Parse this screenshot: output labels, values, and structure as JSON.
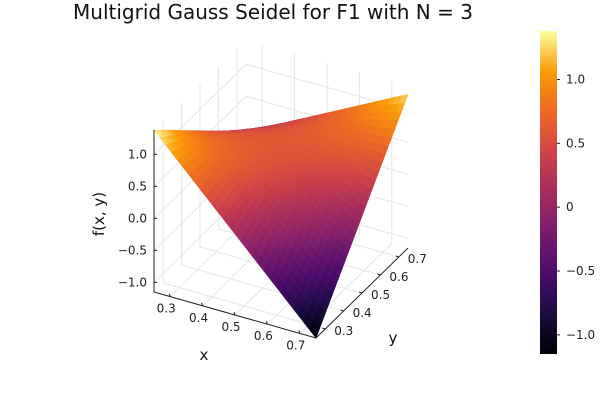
{
  "chart_data": {
    "type": "surface",
    "title": "Multigrid Gauss Seidel for F1 with N = 3",
    "xlabel": "x",
    "ylabel": "y",
    "zlabel": "f(x, y)",
    "colormap": "inferno",
    "xlim": [
      0.25,
      0.75
    ],
    "ylim": [
      0.25,
      0.75
    ],
    "zlim": [
      -1.15,
      1.38
    ],
    "clim": [
      -1.15,
      1.38
    ],
    "x_ticks": [
      "0.3",
      "0.4",
      "0.5",
      "0.6",
      "0.7"
    ],
    "y_ticks": [
      "0.3",
      "0.4",
      "0.5",
      "0.6",
      "0.7"
    ],
    "z_ticks": [
      "−1.0",
      "−0.5",
      "0.0",
      "0.5",
      "1.0"
    ],
    "colorbar_ticks": [
      "−1.0",
      "−0.5",
      "0",
      "0.5",
      "1.0"
    ],
    "grid": true,
    "legend": "none",
    "corner_values": {
      "x_min_y_min": 1.38,
      "x_max_y_min": -1.15,
      "x_max_y_max": 1.25,
      "x_min_y_max": -0.05
    },
    "center_value": 0.55
  }
}
